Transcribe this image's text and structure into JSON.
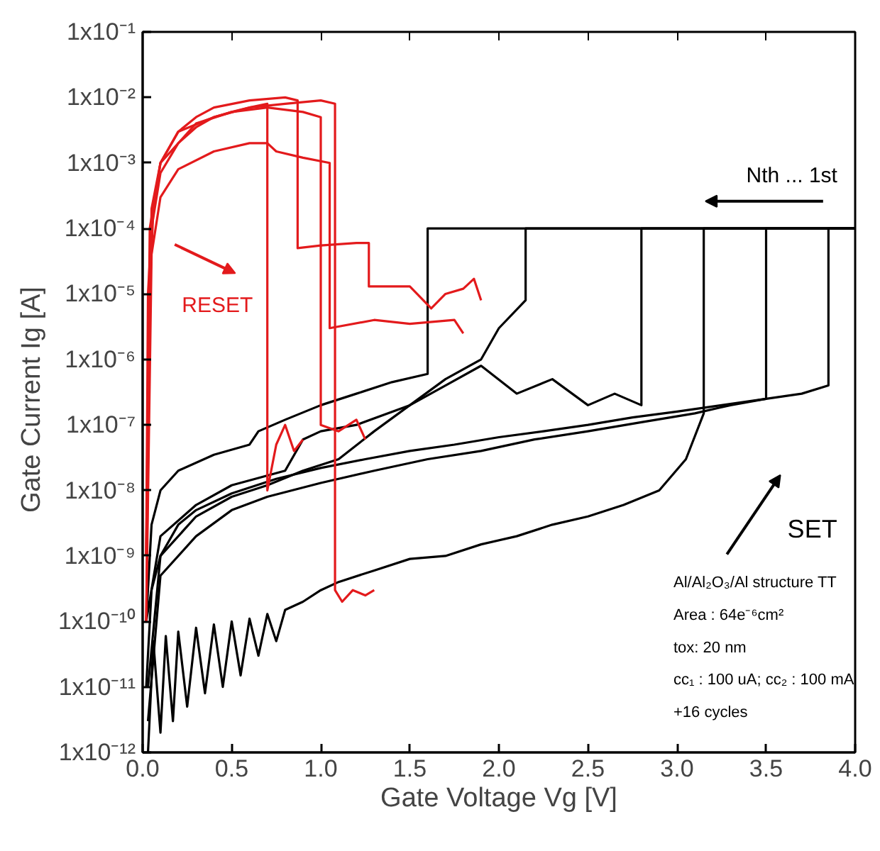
{
  "chart_data": {
    "type": "line",
    "xlabel": "Gate Voltage Vg [V]",
    "ylabel": "Gate Current  Ig  [A]",
    "log": "y",
    "grid": false,
    "xlim": [
      0,
      4
    ],
    "ylim": [
      1e-12,
      0.1
    ],
    "xticks": [
      {
        "value": 0,
        "label": "0.0"
      },
      0.5,
      {
        "value": 1,
        "label": "1.0"
      },
      1.5,
      {
        "value": 2,
        "label": "2.0"
      },
      2.5,
      {
        "value": 3,
        "label": "3.0"
      },
      3.5,
      {
        "value": 4,
        "label": "4.0"
      }
    ],
    "yticks": [
      {
        "value": 1e-12,
        "label": "1x10⁻¹²"
      },
      {
        "value": 1e-11,
        "label": "1x10⁻¹¹"
      },
      {
        "value": 1e-10,
        "label": "1x10⁻¹⁰"
      },
      {
        "value": 1e-09,
        "label": "1x10⁻⁹"
      },
      {
        "value": 1e-08,
        "label": "1x10⁻⁸"
      },
      {
        "value": 1e-07,
        "label": "1x10⁻⁷"
      },
      {
        "value": 1e-06,
        "label": "1x10⁻⁶"
      },
      {
        "value": 1e-05,
        "label": "1x10⁻⁵"
      },
      {
        "value": 0.0001,
        "label": "1x10⁻⁴"
      },
      {
        "value": 0.001,
        "label": "1x10⁻³"
      },
      {
        "value": 0.01,
        "label": "1x10⁻²"
      },
      {
        "value": 0.1,
        "label": "1x10⁻¹"
      }
    ],
    "annotations": [
      "RESET",
      "SET",
      "Nth ... 1st",
      "Al/Al₂O₃/Al structure TT",
      "Area : 64e⁻⁶cm²",
      "tox: 20 nm",
      "cc₁ : 100 uA; cc₂ : 100 mA",
      "+16 cycles"
    ],
    "series": [
      {
        "color": "#000000",
        "x": [
          0.02,
          0.05,
          0.1,
          0.2,
          0.3,
          0.5,
          0.75,
          1.0,
          1.25,
          1.5,
          1.75,
          2.0,
          2.25,
          2.5,
          2.75,
          3.0,
          3.25,
          3.5,
          3.7,
          3.85,
          3.85,
          4.0
        ],
        "values": [
          1e-11,
          3e-10,
          1e-09,
          3e-09,
          5e-09,
          9e-09,
          1.5e-08,
          2.2e-08,
          3e-08,
          4e-08,
          5e-08,
          6.5e-08,
          8e-08,
          1e-07,
          1.3e-07,
          1.6e-07,
          2e-07,
          2.5e-07,
          3e-07,
          4e-07,
          0.0001,
          0.0001
        ]
      },
      {
        "color": "#000000",
        "x": [
          0.03,
          0.06,
          0.1,
          0.13,
          0.17,
          0.2,
          0.25,
          0.3,
          0.35,
          0.4,
          0.45,
          0.5,
          0.55,
          0.6,
          0.65,
          0.7,
          0.75,
          0.8,
          0.9,
          1.0,
          1.1,
          1.3,
          1.5,
          1.7,
          1.9,
          2.1,
          2.3,
          2.5,
          2.7,
          2.9,
          3.05,
          3.15,
          3.15,
          3.5,
          4.0
        ],
        "values": [
          1e-12,
          5e-11,
          2e-12,
          6e-11,
          3e-12,
          7e-11,
          5e-12,
          8e-11,
          8e-12,
          9e-11,
          1e-11,
          1e-10,
          1.5e-11,
          1.1e-10,
          3e-11,
          1.3e-10,
          5e-11,
          1.5e-10,
          2e-10,
          3e-10,
          4e-10,
          6e-10,
          9e-10,
          1e-09,
          1.5e-09,
          2e-09,
          3e-09,
          4e-09,
          6e-09,
          1e-08,
          3e-08,
          1.5e-07,
          0.0001,
          0.0001,
          0.0001
        ]
      },
      {
        "color": "#000000",
        "x": [
          0.02,
          0.05,
          0.1,
          0.2,
          0.4,
          0.6,
          0.65,
          0.8,
          1.0,
          1.2,
          1.4,
          1.6,
          1.6,
          4.0
        ],
        "values": [
          1e-10,
          3e-09,
          1e-08,
          2e-08,
          3.5e-08,
          5e-08,
          8e-08,
          1.2e-07,
          2e-07,
          3e-07,
          4.5e-07,
          6e-07,
          0.0001,
          0.0001
        ]
      },
      {
        "color": "#000000",
        "x": [
          0.02,
          0.1,
          0.3,
          0.5,
          0.8,
          0.9,
          1.0,
          1.2,
          1.5,
          1.7,
          1.9,
          2.0,
          2.15,
          2.15,
          4.0
        ],
        "values": [
          1e-10,
          2e-09,
          6e-09,
          1.2e-08,
          2e-08,
          6e-08,
          8e-08,
          1e-07,
          2e-07,
          5e-07,
          1e-06,
          3e-06,
          8e-06,
          0.0001,
          0.0001
        ]
      },
      {
        "color": "#000000",
        "x": [
          0.03,
          0.1,
          0.3,
          0.5,
          0.7,
          0.9,
          1.1,
          1.3,
          1.5,
          1.7,
          1.9,
          2.1,
          2.3,
          2.5,
          2.65,
          2.8,
          2.8,
          4.0
        ],
        "values": [
          1e-11,
          1e-09,
          4e-09,
          8e-09,
          1.2e-08,
          2e-08,
          3e-08,
          8e-08,
          2e-07,
          4e-07,
          8e-07,
          3e-07,
          5e-07,
          2e-07,
          3e-07,
          2e-07,
          0.0001,
          0.0001
        ]
      },
      {
        "color": "#000000",
        "x": [
          0.03,
          0.1,
          0.3,
          0.5,
          0.7,
          1.0,
          1.3,
          1.6,
          1.9,
          2.2,
          2.5,
          2.8,
          3.1,
          3.3,
          3.5,
          3.5,
          4.0
        ],
        "values": [
          3e-12,
          5e-10,
          2e-09,
          5e-09,
          8e-09,
          1.3e-08,
          2e-08,
          3e-08,
          4e-08,
          6e-08,
          8e-08,
          1.1e-07,
          1.5e-07,
          2e-07,
          2.5e-07,
          0.0001,
          0.0001
        ]
      },
      {
        "color": "#e31a1c",
        "x": [
          0.02,
          0.03,
          0.05,
          0.1,
          0.2,
          0.3,
          0.4,
          0.5,
          0.6,
          0.7,
          0.7,
          0.75,
          0.8,
          0.85,
          0.9
        ],
        "values": [
          1e-09,
          1e-05,
          0.0001,
          0.0007,
          0.002,
          0.0035,
          0.005,
          0.006,
          0.007,
          0.008,
          1e-08,
          5e-08,
          1e-07,
          4e-08,
          6e-08
        ]
      },
      {
        "color": "#e31a1c",
        "x": [
          0.02,
          0.04,
          0.06,
          0.1,
          0.2,
          0.3,
          0.4,
          0.6,
          0.8,
          0.87,
          0.87,
          1.0,
          1.2,
          1.27,
          1.27,
          1.5,
          1.62,
          1.7,
          1.8,
          1.86,
          1.9
        ],
        "values": [
          1e-10,
          1e-05,
          0.0002,
          0.001,
          0.003,
          0.005,
          0.007,
          0.009,
          0.01,
          0.009,
          5e-05,
          5.5e-05,
          6e-05,
          6e-05,
          1.3e-05,
          1.3e-05,
          6e-06,
          1e-05,
          1.2e-05,
          1.7e-05,
          8e-06
        ]
      },
      {
        "color": "#e31a1c",
        "x": [
          0.02,
          0.05,
          0.1,
          0.2,
          0.4,
          0.6,
          0.7,
          0.75,
          0.9,
          1.05,
          1.05,
          1.3,
          1.5,
          1.75,
          1.8
        ],
        "values": [
          1e-10,
          4e-05,
          0.0003,
          0.0008,
          0.0015,
          0.002,
          0.002,
          0.0015,
          0.0012,
          0.001,
          3e-06,
          4e-06,
          3.5e-06,
          4e-06,
          2.5e-06
        ]
      },
      {
        "color": "#e31a1c",
        "x": [
          0.02,
          0.04,
          0.1,
          0.2,
          0.4,
          0.6,
          0.8,
          1.0,
          1.08,
          1.08,
          1.12,
          1.18,
          1.25,
          1.3
        ],
        "values": [
          1e-09,
          0.0001,
          0.001,
          0.003,
          0.005,
          0.007,
          0.008,
          0.009,
          0.008,
          3e-10,
          2e-10,
          3e-10,
          2.5e-10,
          3e-10
        ]
      },
      {
        "color": "#e31a1c",
        "x": [
          0.02,
          0.05,
          0.1,
          0.3,
          0.5,
          0.7,
          0.9,
          1.0,
          1.0,
          1.1,
          1.2,
          1.25
        ],
        "values": [
          1e-09,
          0.0002,
          0.001,
          0.004,
          0.006,
          0.007,
          0.006,
          0.005,
          1e-07,
          8e-08,
          1.2e-07,
          6e-08
        ]
      }
    ]
  }
}
